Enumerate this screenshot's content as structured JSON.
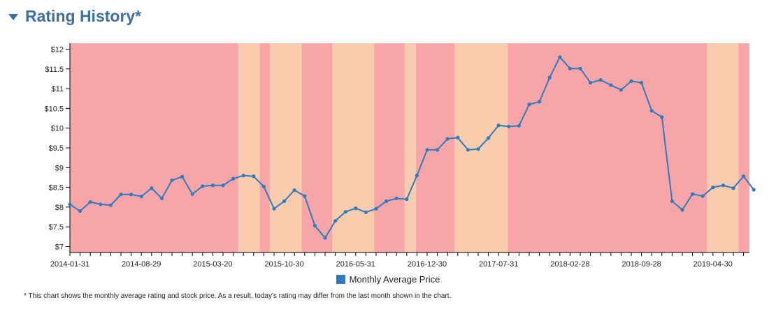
{
  "header": {
    "title": "Rating History*",
    "toggle_icon": "caret-down-icon"
  },
  "legend": {
    "label": "Monthly Average Price",
    "color": "#2e7bbf"
  },
  "footnote": "* This chart shows the monthly average rating and stock price. As a result, today's rating may differ from the last month shown in the chart.",
  "colors": {
    "sell_band": "#f8a5a8",
    "hold_band": "#f9ccae",
    "line": "#2e7bbf",
    "title": "#3d6fa3"
  },
  "chart_data": {
    "type": "line",
    "title": "",
    "xlabel": "",
    "ylabel": "",
    "ylim": [
      6.85,
      12.15
    ],
    "yticks": [
      7,
      7.5,
      8,
      8.5,
      9,
      9.5,
      10,
      10.5,
      11,
      11.5,
      12
    ],
    "ytick_labels": [
      "$7",
      "$7.5",
      "$8",
      "$8.5",
      "$9",
      "$9.5",
      "$10",
      "$10.5",
      "$11",
      "$11.5",
      "$12"
    ],
    "xtick_labels": [
      "2014-01-31",
      "2014-08-29",
      "2015-03-20",
      "2015-10-30",
      "2016-05-31",
      "2016-12-30",
      "2017-07-31",
      "2018-02-28",
      "2018-09-28",
      "2019-04-30"
    ],
    "xtick_positions": [
      0,
      7,
      14,
      21,
      28,
      35,
      42,
      49,
      56,
      63
    ],
    "series": [
      {
        "name": "Monthly Average Price",
        "values": [
          8.07,
          7.9,
          8.13,
          8.07,
          8.05,
          8.32,
          8.32,
          8.27,
          8.48,
          8.22,
          8.68,
          8.77,
          8.33,
          8.53,
          8.55,
          8.55,
          8.72,
          8.8,
          8.78,
          8.52,
          7.96,
          8.15,
          8.43,
          8.28,
          7.53,
          7.22,
          7.65,
          7.88,
          7.97,
          7.87,
          7.96,
          8.15,
          8.22,
          8.2,
          8.8,
          9.45,
          9.45,
          9.73,
          9.76,
          9.45,
          9.47,
          9.75,
          10.07,
          10.04,
          10.06,
          10.6,
          10.67,
          11.28,
          11.8,
          11.51,
          11.51,
          11.15,
          11.22,
          11.09,
          10.97,
          11.19,
          11.15,
          10.44,
          10.28,
          8.15,
          7.93,
          8.33,
          8.28,
          8.5,
          8.55,
          8.48,
          8.78,
          8.44
        ]
      }
    ],
    "rating_bands": [
      {
        "start": 0,
        "end": 16.5,
        "rating": "sell"
      },
      {
        "start": 16.5,
        "end": 18.6,
        "rating": "hold"
      },
      {
        "start": 18.6,
        "end": 19.6,
        "rating": "sell"
      },
      {
        "start": 19.6,
        "end": 22.7,
        "rating": "hold"
      },
      {
        "start": 22.7,
        "end": 25.7,
        "rating": "sell"
      },
      {
        "start": 25.7,
        "end": 29.8,
        "rating": "hold"
      },
      {
        "start": 29.8,
        "end": 32.8,
        "rating": "sell"
      },
      {
        "start": 32.8,
        "end": 33.9,
        "rating": "hold"
      },
      {
        "start": 33.9,
        "end": 37.7,
        "rating": "sell"
      },
      {
        "start": 37.7,
        "end": 42.9,
        "rating": "hold"
      },
      {
        "start": 42.9,
        "end": 62.4,
        "rating": "sell"
      },
      {
        "start": 62.4,
        "end": 65.5,
        "rating": "hold"
      },
      {
        "start": 65.5,
        "end": 66.6,
        "rating": "sell"
      }
    ],
    "grid": false,
    "legend_position": "bottom-center"
  }
}
